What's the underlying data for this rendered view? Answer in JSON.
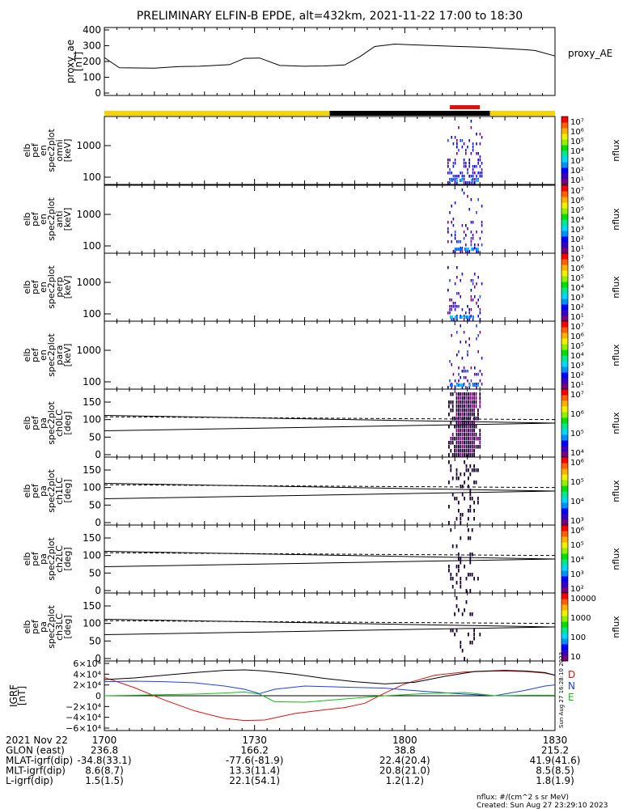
{
  "title": "PRELIMINARY ELFIN-B EPDE, alt=432km, 2021-11-22 17:00 to 18:30",
  "colors": {
    "yellow": "#f5d400",
    "black": "#000000",
    "red": "#e01010",
    "ae": "#000000"
  },
  "ae_panel": {
    "ylabel": [
      "proxy_ae",
      "[nT]"
    ],
    "ticks": [
      "400",
      "300",
      "200",
      "100",
      "0"
    ],
    "legend": "proxy_AE",
    "ylim": [
      0,
      400
    ]
  },
  "spec_panels": [
    {
      "ylabel": [
        "elb",
        "pef",
        "en",
        "spec2plot",
        "omni",
        "[keV]"
      ],
      "ticks": [
        "1000",
        "100"
      ],
      "cbar": [
        "10⁷",
        "10⁶",
        "10⁵",
        "10⁴",
        "10³",
        "10²",
        "10¹"
      ],
      "cbar_label": "nflux"
    },
    {
      "ylabel": [
        "elb",
        "pef",
        "en",
        "spec2plot",
        "anti",
        "[keV]"
      ],
      "ticks": [
        "1000",
        "100"
      ],
      "cbar": [
        "10⁷",
        "10⁶",
        "10⁵",
        "10⁴",
        "10³",
        "10²",
        "10¹"
      ],
      "cbar_label": "nflux"
    },
    {
      "ylabel": [
        "elb",
        "pef",
        "en",
        "spec2plot",
        "perp",
        "[keV]"
      ],
      "ticks": [
        "1000",
        "100"
      ],
      "cbar": [
        "10⁷",
        "10⁶",
        "10⁵",
        "10⁴",
        "10³",
        "10²",
        "10¹"
      ],
      "cbar_label": "nflux"
    },
    {
      "ylabel": [
        "elb",
        "pef",
        "en",
        "spec2plot",
        "para",
        "[keV]"
      ],
      "ticks": [
        "1000",
        "100"
      ],
      "cbar": [
        "10⁷",
        "10⁶",
        "10⁵",
        "10⁴",
        "10³",
        "10²",
        "10¹"
      ],
      "cbar_label": "nflux"
    }
  ],
  "pa_panels": [
    {
      "ylabel": [
        "elb",
        "pef",
        "pa",
        "spec2plot",
        "ch0LC",
        "[deg]"
      ],
      "ticks": [
        "150",
        "100",
        "50",
        "0"
      ],
      "cbar": [
        "10⁷",
        "10⁶",
        "10⁵",
        "10⁴"
      ],
      "cbar_label": "nflux"
    },
    {
      "ylabel": [
        "elb",
        "pef",
        "pa",
        "spec2plot",
        "ch1LC",
        "[deg]"
      ],
      "ticks": [
        "150",
        "100",
        "50",
        "0"
      ],
      "cbar": [
        "10⁶",
        "10⁵",
        "10⁴",
        "10³"
      ],
      "cbar_label": "nflux"
    },
    {
      "ylabel": [
        "elb",
        "pef",
        "pa",
        "spec2plot",
        "ch2LC",
        "[deg]"
      ],
      "ticks": [
        "150",
        "100",
        "50",
        "0"
      ],
      "cbar": [
        "10⁶",
        "10⁵",
        "10⁴",
        "10³",
        "10²"
      ],
      "cbar_label": "nflux"
    },
    {
      "ylabel": [
        "elb",
        "pef",
        "pa",
        "spec2plot",
        "ch3LC",
        "[deg]"
      ],
      "ticks": [
        "150",
        "100",
        "50",
        "0"
      ],
      "cbar": [
        "10000",
        "1000",
        "100",
        "10"
      ],
      "cbar_label": "nflux"
    }
  ],
  "igrf_panel": {
    "ylabel": [
      "IGRF",
      "[nT]"
    ],
    "ticks": [
      "6×10⁴",
      "4×10⁴",
      "2×10⁴",
      "0",
      "−2×10⁴",
      "−4×10⁴",
      "−6×10⁴"
    ],
    "ylim": [
      -60000,
      60000
    ],
    "legend": [
      {
        "label": "D",
        "color": "#e01010"
      },
      {
        "label": "N",
        "color": "#2040e0"
      },
      {
        "label": "E",
        "color": "#10c010"
      }
    ],
    "stamp": "Sun Aug 27 16:28:10 2023"
  },
  "chart_data": {
    "type": "line",
    "x_ticks": [
      "1700",
      "1730",
      "1800",
      "1830"
    ],
    "x_minutes": [
      0,
      30,
      60,
      90
    ],
    "ae_series": {
      "t": [
        0,
        3,
        10,
        15,
        19,
        25,
        28,
        31,
        35,
        40,
        44,
        48,
        51,
        54,
        58,
        62,
        68,
        76,
        80,
        84,
        86,
        90
      ],
      "v": [
        225,
        160,
        158,
        168,
        170,
        180,
        220,
        222,
        175,
        170,
        172,
        178,
        230,
        295,
        310,
        305,
        298,
        290,
        282,
        275,
        270,
        235
      ]
    },
    "orbit_bar": [
      {
        "t0": 0,
        "t1": 45,
        "color": "yellow"
      },
      {
        "t0": 45,
        "t1": 77,
        "color": "black"
      },
      {
        "t0": 77,
        "t1": 90,
        "color": "yellow"
      }
    ],
    "science_zone": {
      "t0": 69,
      "t1": 75
    },
    "igrf_series": [
      {
        "name": "D",
        "t": [
          0,
          6,
          12,
          18,
          24,
          28,
          32,
          38,
          44,
          48,
          52,
          56,
          60,
          66,
          72,
          78,
          84,
          88,
          90
        ],
        "v": [
          34000,
          15000,
          -8000,
          -28000,
          -42000,
          -46000,
          -45000,
          -33000,
          -26000,
          -22000,
          -14000,
          5000,
          22000,
          38000,
          44000,
          46000,
          45000,
          42000,
          38000
        ]
      },
      {
        "name": "N",
        "t": [
          0,
          6,
          12,
          18,
          24,
          28,
          31,
          34,
          40,
          48,
          56,
          64,
          72,
          78,
          84,
          88,
          90
        ],
        "v": [
          26000,
          27000,
          26000,
          24000,
          18000,
          12000,
          4000,
          12000,
          18000,
          16000,
          14000,
          8000,
          3000,
          0,
          10000,
          18000,
          20000
        ]
      },
      {
        "name": "E",
        "t": [
          0,
          6,
          12,
          18,
          24,
          28,
          31,
          34,
          40,
          48,
          56,
          64,
          72,
          76,
          78,
          84,
          90
        ],
        "v": [
          0,
          1000,
          2000,
          3000,
          5000,
          7000,
          3000,
          -11000,
          -12000,
          -6000,
          0,
          4000,
          6000,
          2000,
          0,
          1000,
          1000
        ]
      },
      {
        "name": "total",
        "t": [
          0,
          6,
          12,
          18,
          24,
          28,
          32,
          38,
          44,
          50,
          56,
          62,
          68,
          74,
          80,
          84,
          88,
          90
        ],
        "v": [
          30000,
          33000,
          38000,
          43000,
          47000,
          48000,
          46000,
          40000,
          32000,
          26000,
          22000,
          25000,
          36000,
          45000,
          47000,
          46000,
          43000,
          38000
        ]
      }
    ]
  },
  "footer": {
    "rows": [
      {
        "label": "2021 Nov 22",
        "values": [
          "1700",
          "1730",
          "1800",
          "1830"
        ]
      },
      {
        "label": "GLON (east)",
        "values": [
          "236.8",
          "166.2",
          "38.8",
          "215.2"
        ]
      },
      {
        "label": "MLAT-igrf(dip)",
        "values": [
          "-34.8(33.1)",
          "-77.6(-81.9)",
          "22.4(20.4)",
          "41.9(41.6)"
        ]
      },
      {
        "label": "MLT-igrf(dip)",
        "values": [
          "8.6(8.7)",
          "13.3(11.4)",
          "20.8(21.0)",
          "8.5(8.5)"
        ]
      },
      {
        "label": "L-igrf(dip)",
        "values": [
          "1.5(1.5)",
          "22.1(54.1)",
          "1.2(1.2)",
          "1.8(1.9)"
        ]
      }
    ],
    "note1": "nflux: #/(cm^2 s sr MeV)",
    "note2": "Created: Sun Aug 27 23:29:10 2023"
  }
}
